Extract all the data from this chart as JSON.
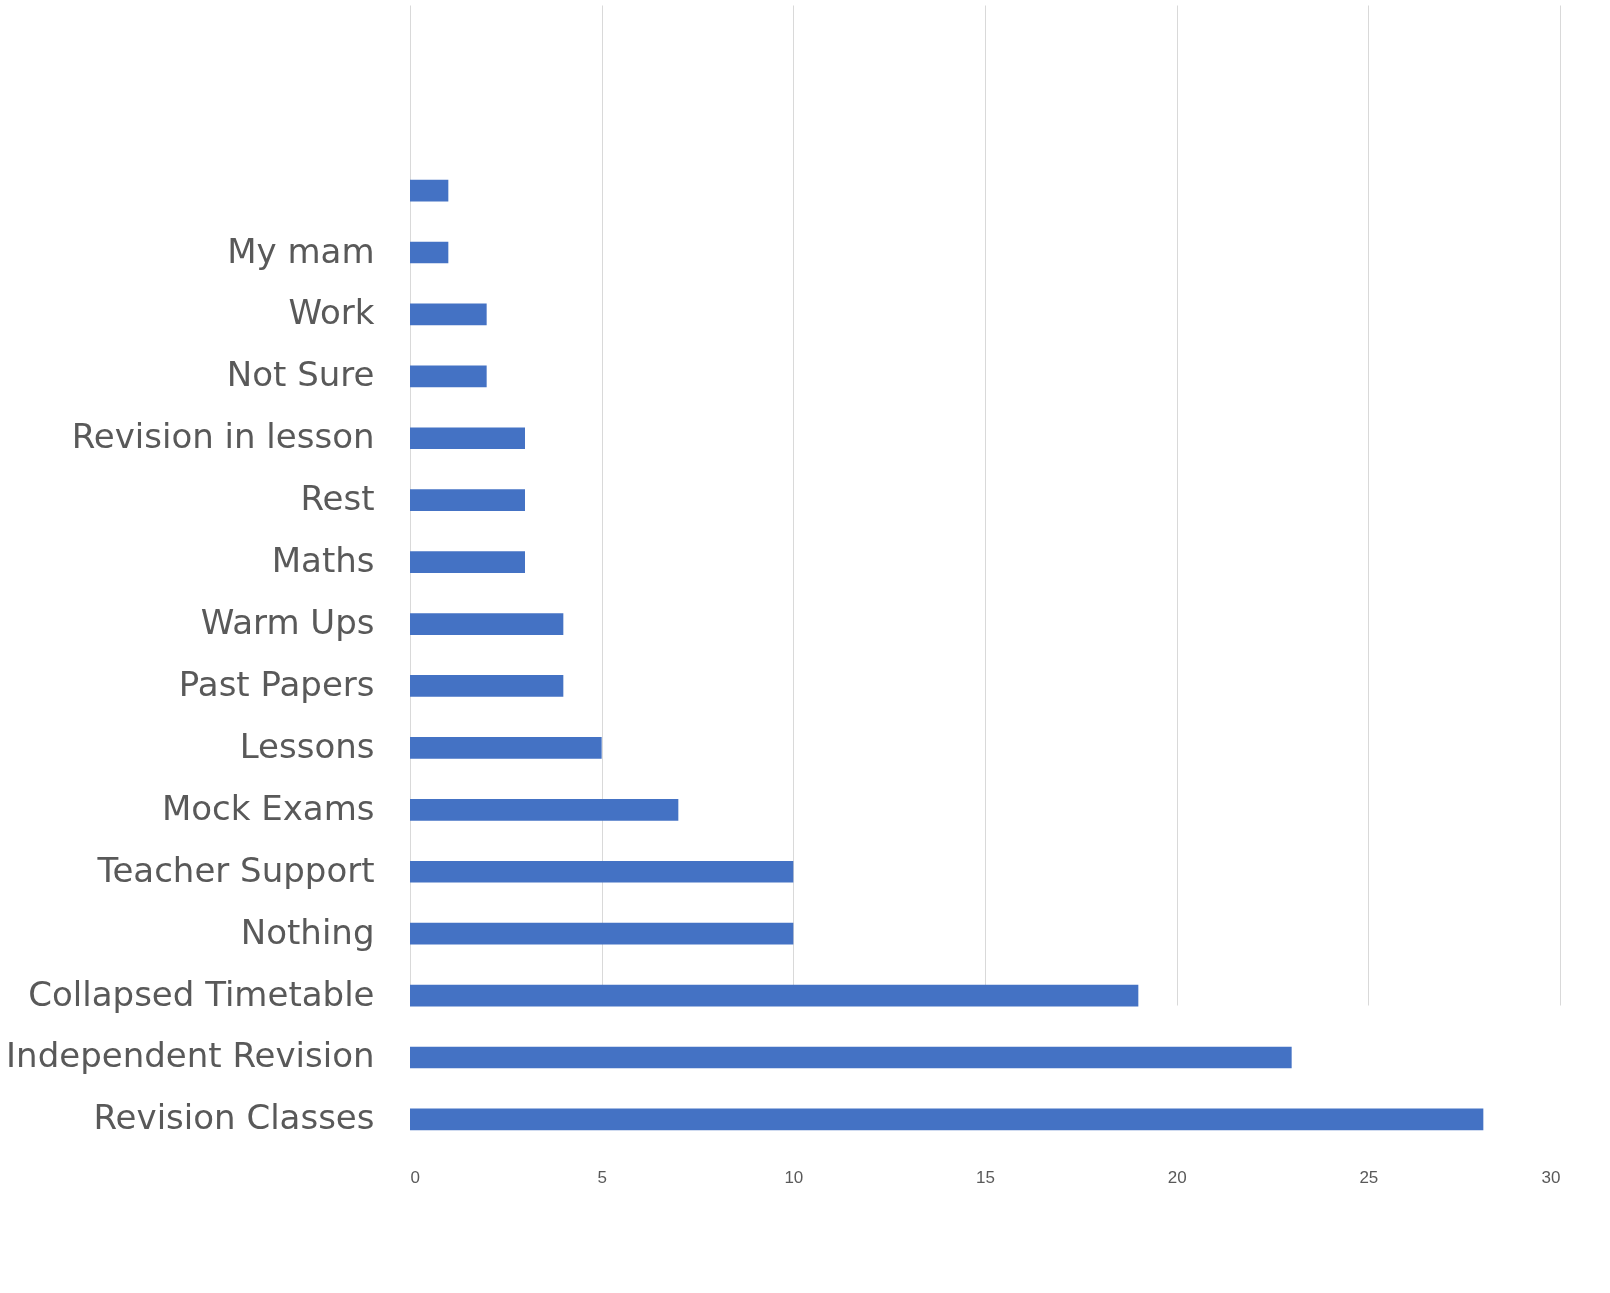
{
  "chart_data": {
    "type": "bar",
    "orientation": "horizontal",
    "categories": [
      null,
      "My mam",
      "Work",
      "Not Sure",
      "Revision in lesson",
      "Rest",
      "Maths",
      "Warm Ups",
      "Past Papers",
      "Lessons",
      "Mock Exams",
      "Teacher Support",
      "Nothing",
      "Collapsed Timetable",
      "Independent Revision",
      "Revision Classes"
    ],
    "values": [
      1,
      1,
      2,
      2,
      3,
      3,
      3,
      4,
      4,
      5,
      7,
      10,
      10,
      19,
      23,
      28
    ],
    "color": "#4472c4",
    "xlim": [
      0,
      30
    ],
    "xticks": [
      0,
      5,
      10,
      15,
      20,
      25,
      30
    ],
    "grid": "x"
  }
}
